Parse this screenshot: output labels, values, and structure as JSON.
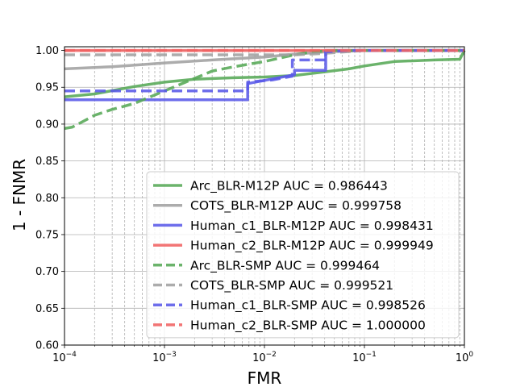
{
  "chart_data": {
    "type": "line",
    "title": "",
    "xlabel": "FMR",
    "ylabel": "1 - FNMR",
    "xscale": "log",
    "xlim": [
      0.0001,
      1
    ],
    "ylim": [
      0.6,
      1.005
    ],
    "x_ticks": [
      {
        "value": 0.0001,
        "base": "10",
        "exp": "−4"
      },
      {
        "value": 0.001,
        "base": "10",
        "exp": "−3"
      },
      {
        "value": 0.01,
        "base": "10",
        "exp": "−2"
      },
      {
        "value": 0.1,
        "base": "10",
        "exp": "−1"
      },
      {
        "value": 1,
        "base": "10",
        "exp": "0"
      }
    ],
    "y_ticks": [
      {
        "value": 0.6,
        "label": "0.60"
      },
      {
        "value": 0.65,
        "label": "0.65"
      },
      {
        "value": 0.7,
        "label": "0.70"
      },
      {
        "value": 0.75,
        "label": "0.75"
      },
      {
        "value": 0.8,
        "label": "0.80"
      },
      {
        "value": 0.85,
        "label": "0.85"
      },
      {
        "value": 0.9,
        "label": "0.90"
      },
      {
        "value": 0.95,
        "label": "0.95"
      },
      {
        "value": 1.0,
        "label": "1.00"
      }
    ],
    "grid": true,
    "legend_position": "lower-right",
    "series": [
      {
        "name": "Arc_BLR-M12P AUC = 0.986443",
        "color": "#56a856",
        "dash": "solid",
        "x": [
          0.0001,
          0.0002,
          0.0005,
          0.001,
          0.002,
          0.005,
          0.01,
          0.02,
          0.04,
          0.07,
          0.1,
          0.2,
          0.5,
          0.9,
          1
        ],
        "y": [
          0.937,
          0.941,
          0.951,
          0.957,
          0.961,
          0.963,
          0.964,
          0.966,
          0.971,
          0.975,
          0.979,
          0.985,
          0.987,
          0.988,
          1.0
        ]
      },
      {
        "name": "COTS_BLR-M12P AUC = 0.999758",
        "color": "#a0a0a0",
        "dash": "solid",
        "x": [
          0.0001,
          0.0003,
          0.001,
          0.003,
          0.01,
          0.02,
          0.04,
          0.1,
          1
        ],
        "y": [
          0.975,
          0.978,
          0.983,
          0.987,
          0.991,
          0.995,
          0.998,
          1.0,
          1.0
        ]
      },
      {
        "name": "Human_c1_BLR-M12P AUC = 0.998431",
        "color": "#5a5ae8",
        "dash": "solid",
        "x": [
          0.0001,
          0.0068,
          0.0068,
          0.02,
          0.02,
          0.041,
          0.041,
          0.1,
          1
        ],
        "y": [
          0.933,
          0.933,
          0.955,
          0.967,
          0.973,
          0.973,
          1.0,
          1.0,
          1.0
        ]
      },
      {
        "name": "Human_c2_BLR-M12P AUC = 0.999949",
        "color": "#f06262",
        "dash": "solid",
        "x": [
          0.0001,
          1
        ],
        "y": [
          1.0,
          1.0
        ]
      },
      {
        "name": "Arc_BLR-SMP AUC = 0.999464",
        "color": "#56a856",
        "dash": "dashed",
        "x": [
          0.0001,
          0.00012,
          0.0002,
          0.0003,
          0.0005,
          0.001,
          0.002,
          0.003,
          0.005,
          0.01,
          0.02,
          0.03,
          0.05,
          1
        ],
        "y": [
          0.894,
          0.896,
          0.912,
          0.92,
          0.928,
          0.945,
          0.962,
          0.972,
          0.978,
          0.985,
          0.994,
          0.998,
          1.0,
          1.0
        ]
      },
      {
        "name": "COTS_BLR-SMP AUC = 0.999521",
        "color": "#a0a0a0",
        "dash": "dashed",
        "x": [
          0.0001,
          0.02,
          0.04,
          0.1,
          1
        ],
        "y": [
          0.994,
          0.994,
          0.996,
          1.0,
          1.0
        ]
      },
      {
        "name": "Human_c1_BLR-SMP AUC = 0.998526",
        "color": "#5a5ae8",
        "dash": "dashed",
        "x": [
          0.0001,
          0.0068,
          0.0068,
          0.012,
          0.019,
          0.019,
          0.041,
          0.041,
          0.07,
          1
        ],
        "y": [
          0.945,
          0.945,
          0.957,
          0.96,
          0.965,
          0.987,
          0.987,
          0.998,
          1.0,
          1.0
        ]
      },
      {
        "name": "Human_c2_BLR-SMP AUC = 1.000000",
        "color": "#f06262",
        "dash": "dashed",
        "x": [
          0.0001,
          1
        ],
        "y": [
          1.0,
          1.0
        ]
      }
    ]
  }
}
